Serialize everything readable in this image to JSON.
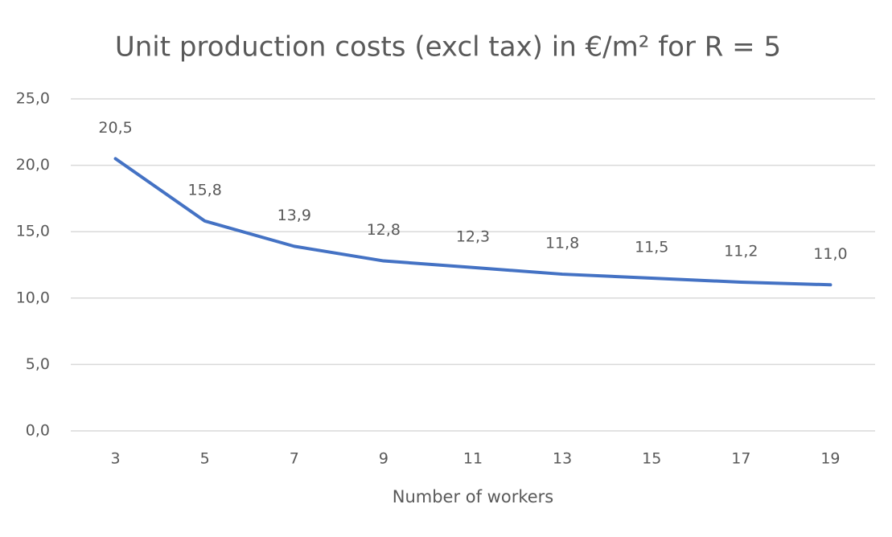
{
  "chart_data": {
    "type": "line",
    "title": "Unit production costs (excl tax) in €/m² for R = 5",
    "x_label": "Number of workers",
    "categories": [
      "3",
      "5",
      "7",
      "9",
      "11",
      "13",
      "15",
      "17",
      "19"
    ],
    "values": [
      20.5,
      15.8,
      13.9,
      12.8,
      12.3,
      11.8,
      11.5,
      11.2,
      11.0
    ],
    "value_labels": [
      "20,5",
      "15,8",
      "13,9",
      "12,8",
      "12,3",
      "11,8",
      "11,5",
      "11,2",
      "11,0"
    ],
    "color": "#4472c4",
    "ylim": [
      0,
      25
    ],
    "yticks": [
      {
        "value": 0,
        "label": "0,0"
      },
      {
        "value": 5,
        "label": "5,0"
      },
      {
        "value": 10,
        "label": "10,0"
      },
      {
        "value": 15,
        "label": "15,0"
      },
      {
        "value": 20,
        "label": "20,0"
      },
      {
        "value": 25,
        "label": "25,0"
      }
    ],
    "grid": true
  }
}
